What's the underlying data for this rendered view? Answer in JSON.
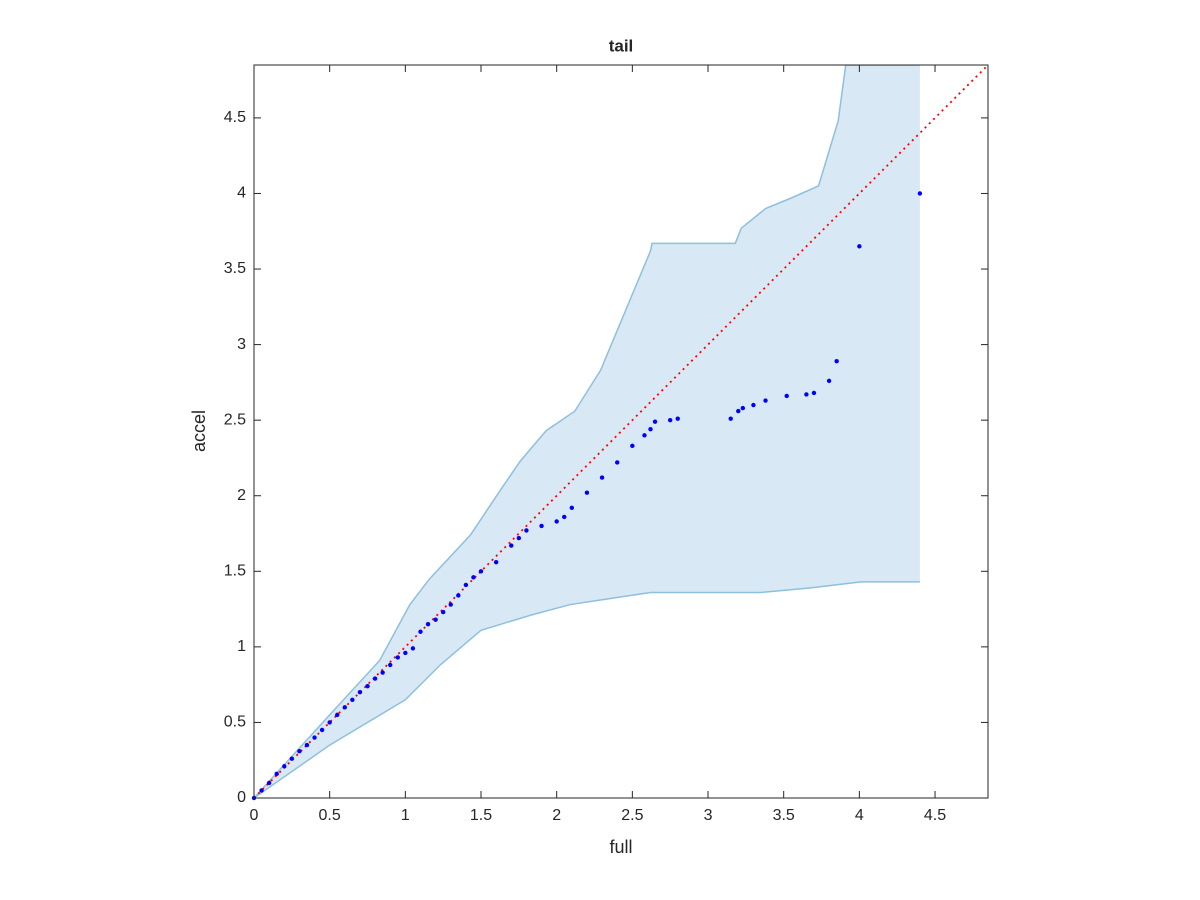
{
  "chart_data": {
    "type": "scatter",
    "title": "tail",
    "xlabel": "full",
    "ylabel": "accel",
    "xlim": [
      0,
      4.85
    ],
    "ylim": [
      0,
      4.85
    ],
    "xticks": [
      0,
      0.5,
      1,
      1.5,
      2,
      2.5,
      3,
      3.5,
      4,
      4.5
    ],
    "yticks": [
      0,
      0.5,
      1,
      1.5,
      2,
      2.5,
      3,
      3.5,
      4,
      4.5
    ],
    "points": {
      "color": "#0000ff",
      "x": [
        0,
        0.05,
        0.1,
        0.15,
        0.2,
        0.25,
        0.3,
        0.35,
        0.4,
        0.45,
        0.5,
        0.55,
        0.6,
        0.65,
        0.7,
        0.75,
        0.8,
        0.85,
        0.9,
        0.95,
        1.0,
        1.05,
        1.1,
        1.15,
        1.2,
        1.25,
        1.3,
        1.35,
        1.4,
        1.45,
        1.5,
        1.6,
        1.7,
        1.75,
        1.8,
        1.9,
        2.0,
        2.05,
        2.1,
        2.2,
        2.3,
        2.4,
        2.5,
        2.58,
        2.62,
        2.65,
        2.75,
        2.8,
        3.15,
        3.2,
        3.23,
        3.3,
        3.38,
        3.52,
        3.65,
        3.7,
        3.8,
        3.85,
        4.0,
        4.4
      ],
      "y": [
        0,
        0.05,
        0.1,
        0.16,
        0.21,
        0.26,
        0.31,
        0.35,
        0.4,
        0.45,
        0.5,
        0.55,
        0.6,
        0.65,
        0.7,
        0.74,
        0.79,
        0.83,
        0.88,
        0.93,
        0.96,
        0.99,
        1.1,
        1.15,
        1.18,
        1.23,
        1.28,
        1.34,
        1.41,
        1.46,
        1.5,
        1.56,
        1.67,
        1.72,
        1.77,
        1.8,
        1.83,
        1.86,
        1.92,
        2.02,
        2.12,
        2.22,
        2.33,
        2.4,
        2.44,
        2.49,
        2.5,
        2.51,
        2.51,
        2.56,
        2.58,
        2.6,
        2.63,
        2.66,
        2.67,
        2.68,
        2.76,
        2.89,
        3.65,
        4.0
      ]
    },
    "band": {
      "color": "#d8e8f4",
      "edge_color": "#8ec0de",
      "upper": {
        "x": [
          0,
          0.5,
          0.83,
          1.03,
          1.16,
          1.43,
          1.63,
          1.76,
          1.93,
          2.12,
          2.29,
          2.62,
          2.63,
          3.18,
          3.22,
          3.38,
          3.55,
          3.73,
          3.86,
          3.91,
          4.4
        ],
        "y": [
          0,
          0.55,
          0.91,
          1.28,
          1.45,
          1.74,
          2.04,
          2.23,
          2.43,
          2.56,
          2.83,
          3.62,
          3.67,
          3.67,
          3.77,
          3.9,
          3.97,
          4.05,
          4.48,
          4.85,
          4.85
        ]
      },
      "lower": {
        "x": [
          0,
          0.5,
          1.0,
          1.23,
          1.5,
          1.83,
          2.09,
          2.29,
          2.62,
          3.35,
          3.68,
          4.01,
          4.4
        ],
        "y": [
          0,
          0.35,
          0.65,
          0.88,
          1.11,
          1.21,
          1.28,
          1.31,
          1.36,
          1.36,
          1.39,
          1.43,
          1.43
        ]
      }
    },
    "reference_line": {
      "color": "#ff0000",
      "x": [
        0,
        4.85
      ],
      "y": [
        0,
        4.85
      ]
    }
  }
}
